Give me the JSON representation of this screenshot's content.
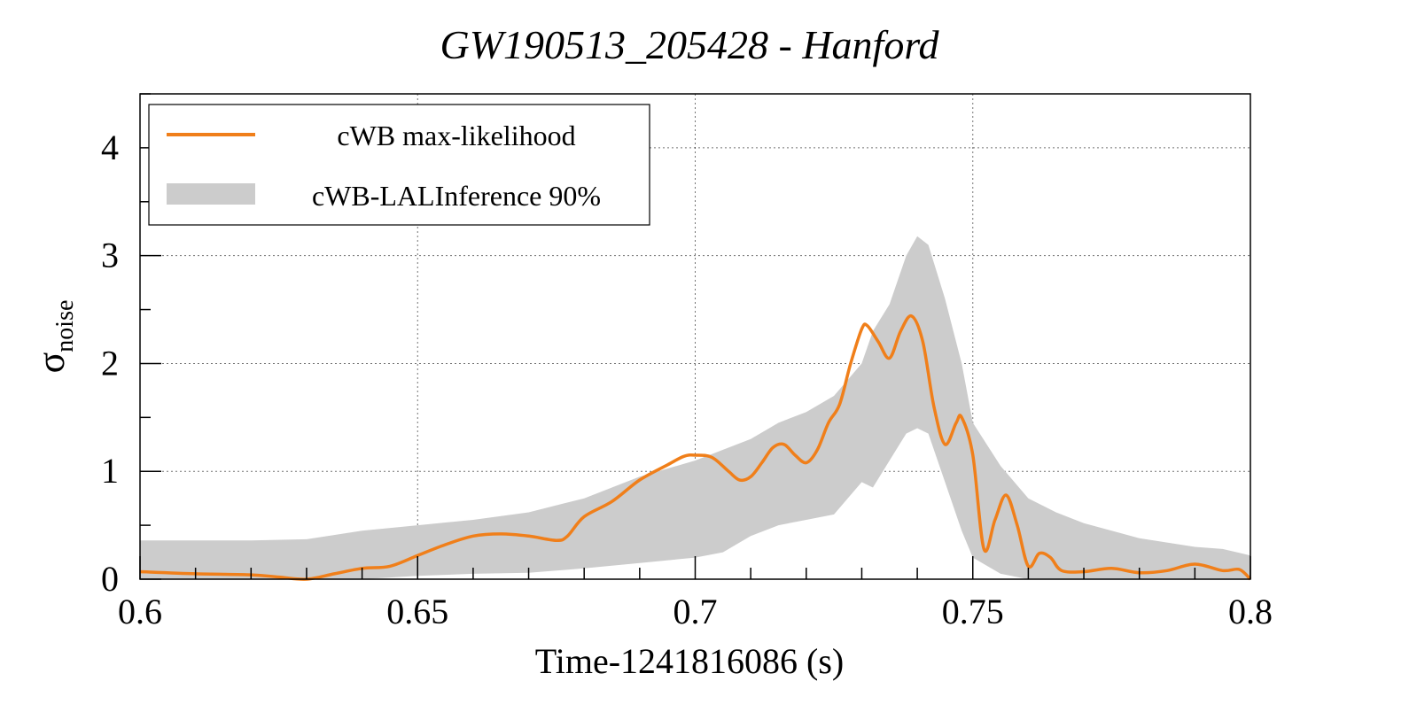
{
  "chart_data": {
    "type": "line",
    "title": "GW190513_205428 - Hanford",
    "xlabel": "Time-1241816086 (s)",
    "ylabel_main": "σ",
    "ylabel_sub": "noise",
    "xlim": [
      0.6,
      0.8
    ],
    "ylim": [
      0,
      4.5
    ],
    "xticks": [
      0.6,
      0.65,
      0.7,
      0.75,
      0.8
    ],
    "xtick_labels": [
      "0.6",
      "0.65",
      "0.7",
      "0.75",
      "0.8"
    ],
    "yticks": [
      0,
      1,
      2,
      3,
      4
    ],
    "ytick_labels": [
      "0",
      "1",
      "2",
      "3",
      "4"
    ],
    "grid": true,
    "legend_position": "top-left",
    "colors": {
      "line": "#f07f1a",
      "band": "#cccccc"
    },
    "series": [
      {
        "name": "cWB max-likelihood",
        "kind": "line",
        "x": [
          0.6,
          0.61,
          0.62,
          0.625,
          0.63,
          0.635,
          0.64,
          0.645,
          0.65,
          0.655,
          0.66,
          0.665,
          0.67,
          0.675,
          0.677,
          0.68,
          0.685,
          0.69,
          0.695,
          0.698,
          0.7,
          0.703,
          0.706,
          0.708,
          0.71,
          0.712,
          0.714,
          0.716,
          0.718,
          0.72,
          0.722,
          0.724,
          0.726,
          0.728,
          0.73,
          0.731,
          0.733,
          0.735,
          0.737,
          0.739,
          0.741,
          0.743,
          0.745,
          0.747,
          0.748,
          0.75,
          0.752,
          0.754,
          0.756,
          0.758,
          0.76,
          0.762,
          0.764,
          0.766,
          0.77,
          0.775,
          0.78,
          0.785,
          0.79,
          0.795,
          0.798,
          0.8
        ],
        "y": [
          0.07,
          0.05,
          0.04,
          0.02,
          0.0,
          0.05,
          0.1,
          0.12,
          0.22,
          0.32,
          0.4,
          0.42,
          0.4,
          0.36,
          0.4,
          0.58,
          0.72,
          0.92,
          1.06,
          1.14,
          1.15,
          1.13,
          1.0,
          0.92,
          0.95,
          1.08,
          1.22,
          1.25,
          1.15,
          1.08,
          1.2,
          1.45,
          1.62,
          2.0,
          2.32,
          2.35,
          2.2,
          2.05,
          2.3,
          2.44,
          2.2,
          1.6,
          1.25,
          1.45,
          1.5,
          1.15,
          0.28,
          0.55,
          0.78,
          0.5,
          0.12,
          0.24,
          0.2,
          0.08,
          0.07,
          0.1,
          0.06,
          0.08,
          0.14,
          0.08,
          0.09,
          0.0
        ]
      },
      {
        "name": "cWB-LALInference 90%",
        "kind": "band",
        "x": [
          0.6,
          0.61,
          0.62,
          0.63,
          0.64,
          0.65,
          0.66,
          0.67,
          0.68,
          0.69,
          0.7,
          0.705,
          0.71,
          0.715,
          0.72,
          0.725,
          0.73,
          0.732,
          0.735,
          0.738,
          0.74,
          0.742,
          0.745,
          0.748,
          0.75,
          0.755,
          0.76,
          0.765,
          0.77,
          0.78,
          0.79,
          0.795,
          0.8
        ],
        "lower": [
          0.0,
          0.0,
          0.0,
          0.0,
          0.0,
          0.03,
          0.05,
          0.06,
          0.1,
          0.15,
          0.2,
          0.25,
          0.4,
          0.5,
          0.55,
          0.6,
          0.9,
          0.85,
          1.1,
          1.35,
          1.4,
          1.35,
          0.9,
          0.45,
          0.2,
          0.05,
          0.0,
          0.0,
          0.0,
          0.0,
          0.0,
          0.0,
          0.0
        ],
        "upper": [
          0.36,
          0.36,
          0.36,
          0.37,
          0.45,
          0.5,
          0.55,
          0.62,
          0.75,
          0.95,
          1.1,
          1.2,
          1.3,
          1.45,
          1.55,
          1.7,
          2.0,
          2.3,
          2.55,
          3.0,
          3.18,
          3.1,
          2.6,
          2.0,
          1.45,
          1.05,
          0.75,
          0.62,
          0.52,
          0.38,
          0.3,
          0.28,
          0.22
        ]
      }
    ]
  }
}
